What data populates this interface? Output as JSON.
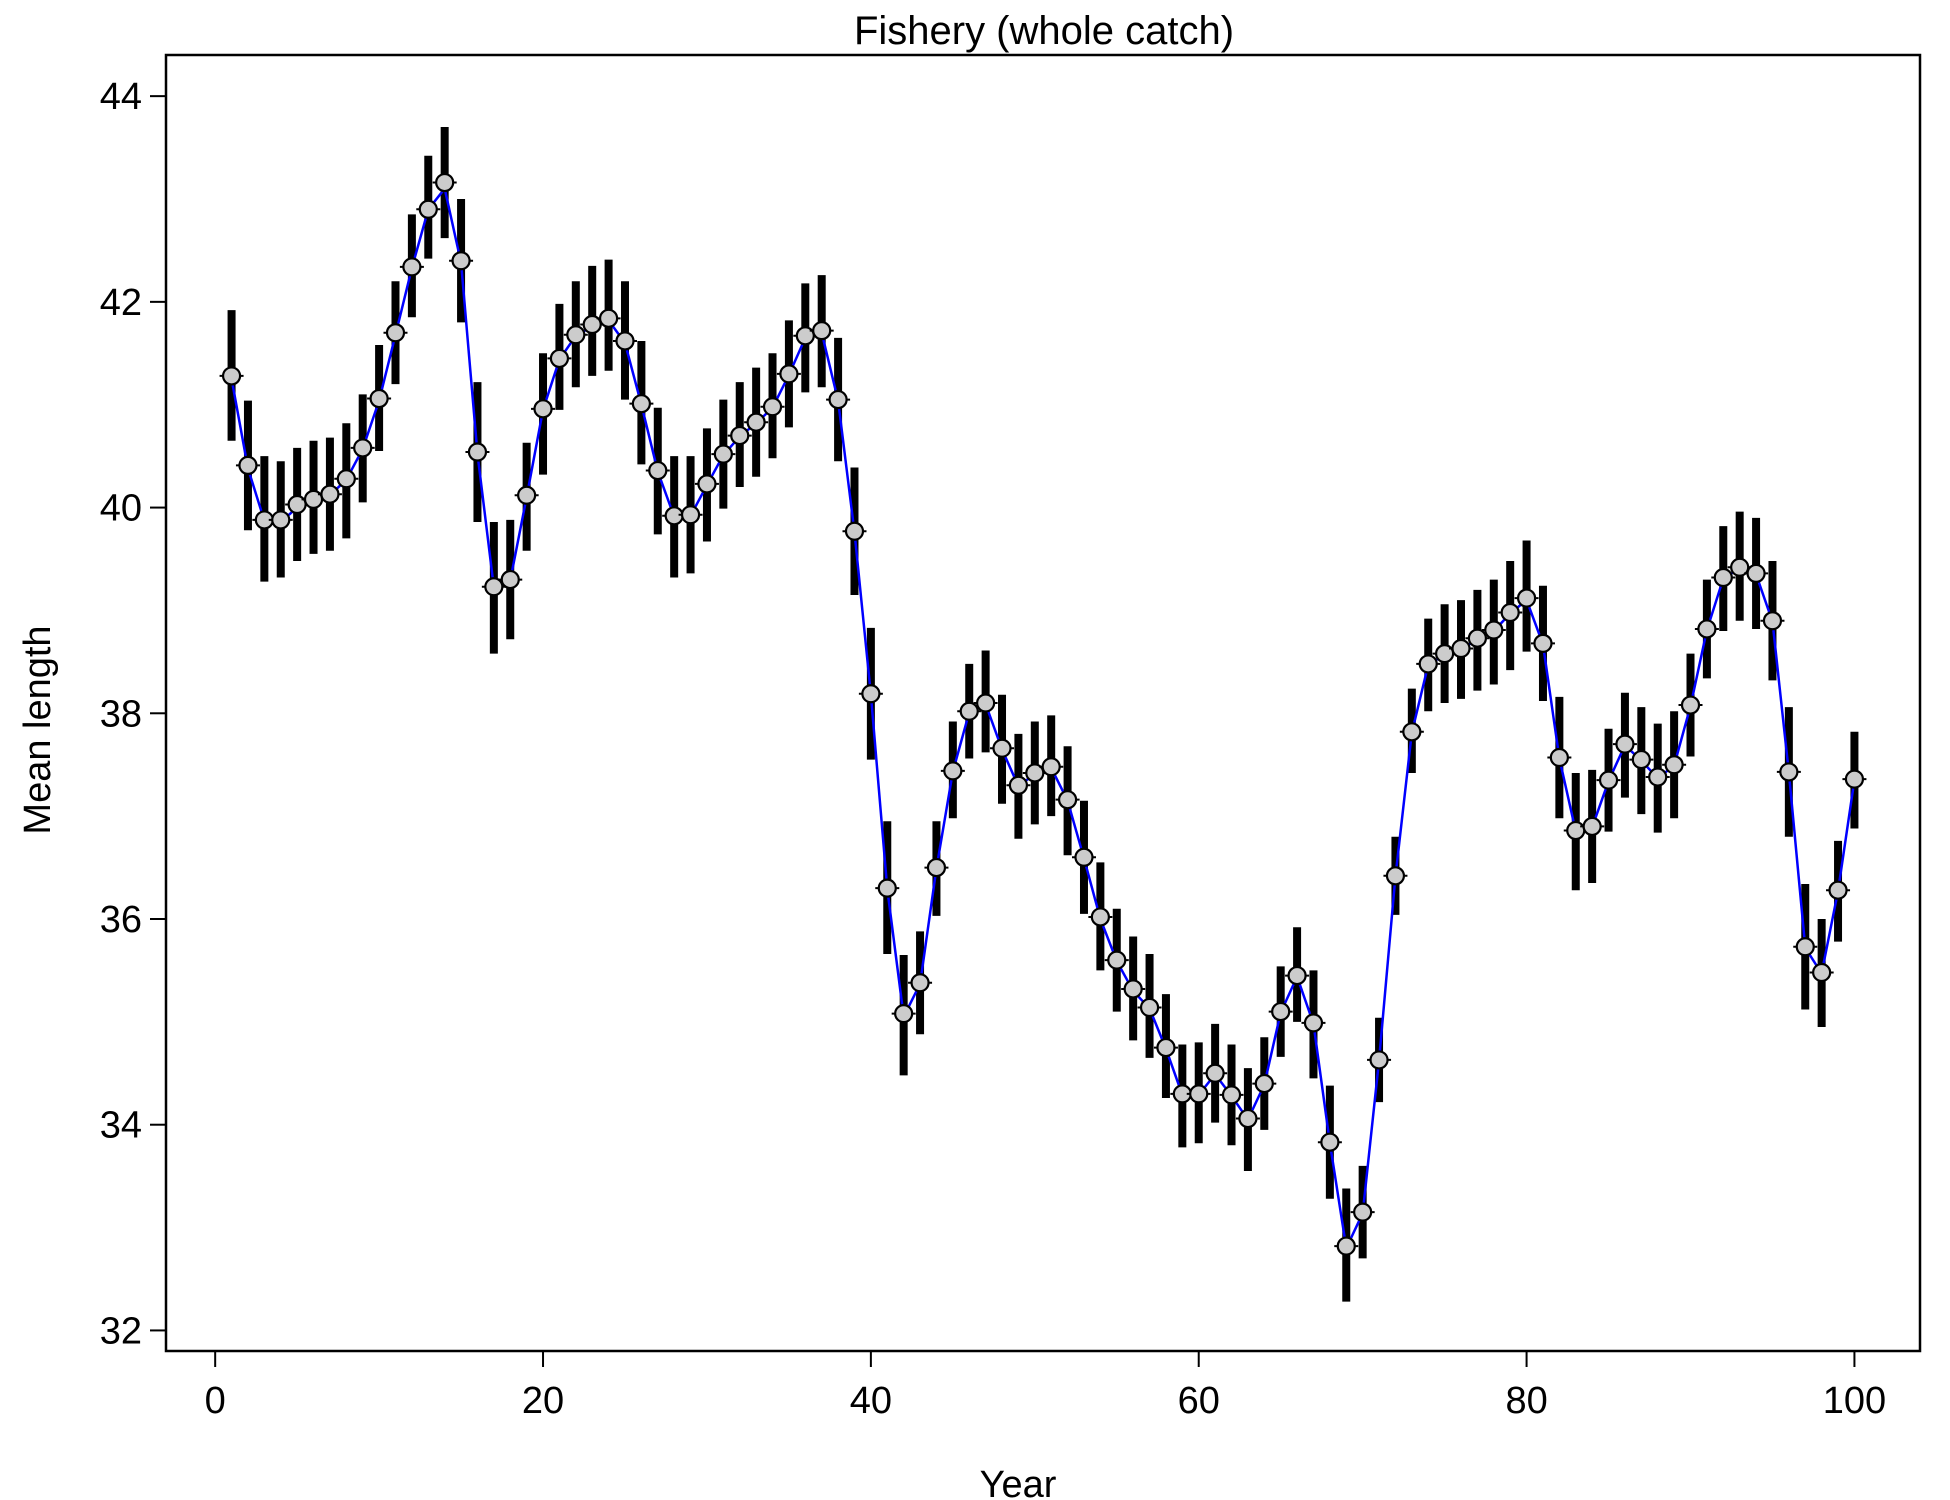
{
  "chart_data": {
    "type": "scatter",
    "title": "Fishery (whole catch)",
    "xlabel": "Year",
    "ylabel": "Mean length",
    "xlim": [
      -3,
      104
    ],
    "ylim": [
      31.8,
      44.4
    ],
    "xticks": [
      0,
      20,
      40,
      60,
      80,
      100
    ],
    "yticks": [
      32,
      34,
      36,
      38,
      40,
      42,
      44
    ],
    "grid": false,
    "colors": {
      "fit_line": "#0000ff",
      "points": "#cccccc",
      "error_bars": "#000000",
      "axes": "#000000"
    },
    "x": [
      1,
      2,
      3,
      4,
      5,
      6,
      7,
      8,
      9,
      10,
      11,
      12,
      13,
      14,
      15,
      16,
      17,
      18,
      19,
      20,
      21,
      22,
      23,
      24,
      25,
      26,
      27,
      28,
      29,
      30,
      31,
      32,
      33,
      34,
      35,
      36,
      37,
      38,
      39,
      40,
      41,
      42,
      43,
      44,
      45,
      46,
      47,
      48,
      49,
      50,
      51,
      52,
      53,
      54,
      55,
      56,
      57,
      58,
      59,
      60,
      61,
      62,
      63,
      64,
      65,
      66,
      67,
      68,
      69,
      70,
      71,
      72,
      73,
      74,
      75,
      76,
      77,
      78,
      79,
      80,
      81,
      82,
      83,
      84,
      85,
      86,
      87,
      88,
      89,
      90,
      91,
      92,
      93,
      94,
      95,
      96,
      97,
      98,
      99,
      100
    ],
    "series": [
      {
        "kind": "observed",
        "values": [
          41.28,
          40.41,
          39.88,
          39.88,
          40.03,
          40.08,
          40.13,
          40.28,
          40.58,
          41.06,
          41.7,
          42.34,
          42.9,
          43.16,
          42.4,
          40.54,
          39.23,
          39.3,
          40.12,
          40.96,
          41.45,
          41.68,
          41.78,
          41.84,
          41.62,
          41.01,
          40.36,
          39.92,
          39.93,
          40.23,
          40.52,
          40.7,
          40.83,
          40.98,
          41.3,
          41.67,
          41.72,
          41.05,
          39.77,
          38.19,
          36.3,
          35.08,
          35.38,
          36.5,
          37.44,
          38.02,
          38.1,
          37.66,
          37.3,
          37.42,
          37.48,
          37.16,
          36.6,
          36.02,
          35.6,
          35.32,
          35.14,
          34.75,
          34.3,
          34.3,
          34.5,
          34.29,
          34.06,
          34.4,
          35.1,
          35.45,
          34.99,
          33.83,
          32.82,
          33.15,
          34.63,
          36.42,
          37.82,
          38.48,
          38.58,
          38.63,
          38.73,
          38.81,
          38.98,
          39.12,
          38.68,
          37.57,
          36.86,
          36.9,
          37.35,
          37.7,
          37.55,
          37.38,
          37.5,
          38.08,
          38.82,
          39.32,
          39.42,
          39.36,
          38.9,
          37.43,
          35.73,
          35.48,
          36.28,
          37.36
        ]
      },
      {
        "kind": "interval",
        "lower": [
          40.65,
          39.78,
          39.28,
          39.32,
          39.48,
          39.55,
          39.58,
          39.7,
          40.05,
          40.55,
          41.2,
          41.85,
          42.42,
          42.62,
          41.8,
          39.86,
          38.58,
          38.72,
          39.58,
          40.32,
          40.95,
          41.17,
          41.28,
          41.33,
          41.05,
          40.42,
          39.74,
          39.32,
          39.36,
          39.67,
          39.99,
          40.2,
          40.3,
          40.48,
          40.78,
          41.12,
          41.17,
          40.45,
          39.15,
          37.55,
          35.66,
          34.48,
          34.88,
          36.03,
          36.98,
          37.56,
          37.62,
          37.12,
          36.78,
          36.92,
          37.0,
          36.62,
          36.05,
          35.5,
          35.1,
          34.82,
          34.65,
          34.26,
          33.78,
          33.82,
          34.02,
          33.8,
          33.55,
          33.95,
          34.66,
          35.0,
          34.45,
          33.28,
          32.28,
          32.7,
          34.22,
          36.04,
          37.42,
          38.02,
          38.1,
          38.14,
          38.22,
          38.28,
          38.42,
          38.6,
          38.12,
          36.98,
          36.28,
          36.35,
          36.85,
          37.18,
          37.02,
          36.84,
          36.98,
          37.58,
          38.34,
          38.8,
          38.9,
          38.82,
          38.32,
          36.8,
          35.12,
          34.95,
          35.78,
          36.88
        ],
        "upper": [
          41.92,
          41.04,
          40.5,
          40.45,
          40.58,
          40.65,
          40.68,
          40.82,
          41.1,
          41.58,
          42.2,
          42.85,
          43.42,
          43.7,
          43.0,
          41.22,
          39.86,
          39.88,
          40.63,
          41.5,
          41.98,
          42.2,
          42.35,
          42.41,
          42.2,
          41.62,
          40.97,
          40.5,
          40.5,
          40.77,
          41.05,
          41.22,
          41.36,
          41.5,
          41.82,
          42.18,
          42.26,
          41.65,
          40.39,
          38.83,
          36.95,
          35.65,
          35.88,
          36.95,
          37.92,
          38.48,
          38.61,
          38.18,
          37.8,
          37.92,
          37.98,
          37.68,
          37.15,
          36.55,
          36.1,
          35.83,
          35.66,
          35.27,
          34.78,
          34.8,
          34.98,
          34.78,
          34.55,
          34.85,
          35.54,
          35.92,
          35.5,
          34.38,
          33.38,
          33.6,
          35.04,
          36.8,
          38.24,
          38.92,
          39.06,
          39.1,
          39.2,
          39.3,
          39.48,
          39.68,
          39.24,
          38.16,
          37.42,
          37.45,
          37.85,
          38.2,
          38.06,
          37.9,
          38.02,
          38.58,
          39.3,
          39.82,
          39.96,
          39.9,
          39.48,
          38.06,
          36.34,
          36.0,
          36.76,
          37.82
        ]
      },
      {
        "kind": "expected",
        "values": [
          41.25,
          40.38,
          39.87,
          39.86,
          40.0,
          40.07,
          40.12,
          40.27,
          40.57,
          41.04,
          41.68,
          42.33,
          42.9,
          43.1,
          42.38,
          40.52,
          39.22,
          39.29,
          40.1,
          40.95,
          41.44,
          41.67,
          41.76,
          41.82,
          41.6,
          41.0,
          40.35,
          39.91,
          39.92,
          40.22,
          40.51,
          40.69,
          40.82,
          40.97,
          41.29,
          41.65,
          41.7,
          41.04,
          39.76,
          38.18,
          36.29,
          35.05,
          35.37,
          36.49,
          37.43,
          38.01,
          38.09,
          37.65,
          37.29,
          37.41,
          37.47,
          37.15,
          36.59,
          36.0,
          35.59,
          35.3,
          35.13,
          34.74,
          34.29,
          34.29,
          34.49,
          34.28,
          34.05,
          34.39,
          35.09,
          35.44,
          34.98,
          33.82,
          32.8,
          33.14,
          34.62,
          36.41,
          37.81,
          38.47,
          38.57,
          38.62,
          38.72,
          38.8,
          38.97,
          39.1,
          38.67,
          37.56,
          36.85,
          36.89,
          37.34,
          37.69,
          37.54,
          37.37,
          37.49,
          38.07,
          38.81,
          39.31,
          39.41,
          39.35,
          38.89,
          37.42,
          35.72,
          35.47,
          36.27,
          37.35
        ]
      }
    ]
  }
}
